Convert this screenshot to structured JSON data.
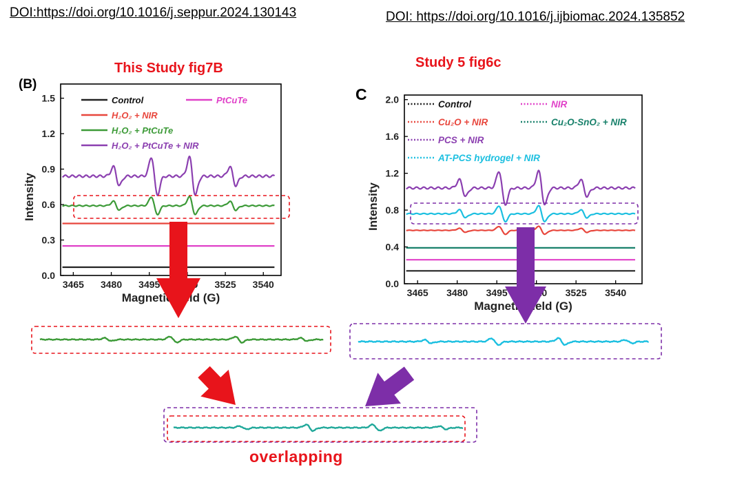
{
  "header": {
    "doi_left": "DOI:https://doi.org/10.1016/j.seppur.2024.130143",
    "doi_right": "DOI: https://doi.org/10.1016/j.ijbiomac.2024.135852"
  },
  "titles": {
    "left_study": "This Study fig7B",
    "right_study": "Study 5  fig6c"
  },
  "overlap_label": "overlapping",
  "colors": {
    "red_accent": "#e8141b",
    "purple_accent": "#7d2ea8",
    "green_trace": "#3c9a37",
    "cyan_trace": "#1bbfe0",
    "overlap_trace": "#20a89a"
  },
  "chart_data": [
    {
      "type": "line",
      "panel": "(B)",
      "xlabel": "Magnetic field (G)",
      "ylabel": "Intensity",
      "xlim": [
        3460,
        3547
      ],
      "ylim": [
        0,
        1.62
      ],
      "xticks": [
        "3465",
        "3480",
        "3495",
        "3510",
        "3525",
        "3540"
      ],
      "yticks": [
        "0.0",
        "0.3",
        "0.6",
        "0.9",
        "1.2",
        "1.5"
      ],
      "legend_position": "top",
      "series": [
        {
          "name": "Control",
          "baseline": 0.07,
          "peak_amplitude": 0,
          "color": "#222222",
          "style": "solid"
        },
        {
          "name": "PtCuTe",
          "baseline": 0.25,
          "peak_amplitude": 0,
          "color": "#e040c8",
          "style": "solid"
        },
        {
          "name": "H₂O₂ + NIR",
          "baseline": 0.44,
          "peak_amplitude": 0,
          "color": "#e8463c",
          "style": "solid"
        },
        {
          "name": "H₂O₂ + PtCuTe",
          "baseline": 0.59,
          "peak_amplitude": 0.07,
          "color": "#3c9a37",
          "style": "solid"
        },
        {
          "name": "H₂O₂ + PtCuTe + NIR",
          "baseline": 0.84,
          "peak_amplitude": 0.15,
          "color": "#8b3fb0",
          "style": "solid"
        }
      ],
      "peak_positions": [
        3482,
        3497,
        3512,
        3528
      ],
      "peak_weights": [
        1,
        2,
        2,
        1
      ]
    },
    {
      "type": "line",
      "panel": "C",
      "xlabel": "Magnetic field (G)",
      "ylabel": "Intensity",
      "xlim": [
        3460,
        3550
      ],
      "ylim": [
        0,
        2.05
      ],
      "xticks": [
        "3465",
        "3480",
        "3495",
        "3510",
        "3525",
        "3540"
      ],
      "yticks": [
        "0.0",
        "0.4",
        "0.8",
        "1.2",
        "1.6",
        "2.0"
      ],
      "legend_position": "top",
      "series": [
        {
          "name": "Control",
          "baseline": 0.14,
          "peak_amplitude": 0,
          "color": "#222222",
          "style": "dotted"
        },
        {
          "name": "NIR",
          "baseline": 0.26,
          "peak_amplitude": 0,
          "color": "#e040c8",
          "style": "dotted"
        },
        {
          "name": "Cu₂O + NIR",
          "baseline": 0.58,
          "peak_amplitude": 0.04,
          "color": "#e8463c",
          "style": "dotted"
        },
        {
          "name": "Cu₂O-SnO₂ + NIR",
          "baseline": 0.39,
          "peak_amplitude": 0,
          "color": "#17806a",
          "style": "dotted"
        },
        {
          "name": "PCS + NIR",
          "baseline": 1.04,
          "peak_amplitude": 0.17,
          "color": "#8b3fb0",
          "style": "dotted"
        },
        {
          "name": "AT-PCS hydrogel + NIR",
          "baseline": 0.76,
          "peak_amplitude": 0.08,
          "color": "#1bbfe0",
          "style": "dotted"
        }
      ],
      "peak_positions": [
        3482,
        3497,
        3512,
        3528
      ],
      "peak_weights": [
        1,
        2,
        2,
        1
      ]
    }
  ]
}
